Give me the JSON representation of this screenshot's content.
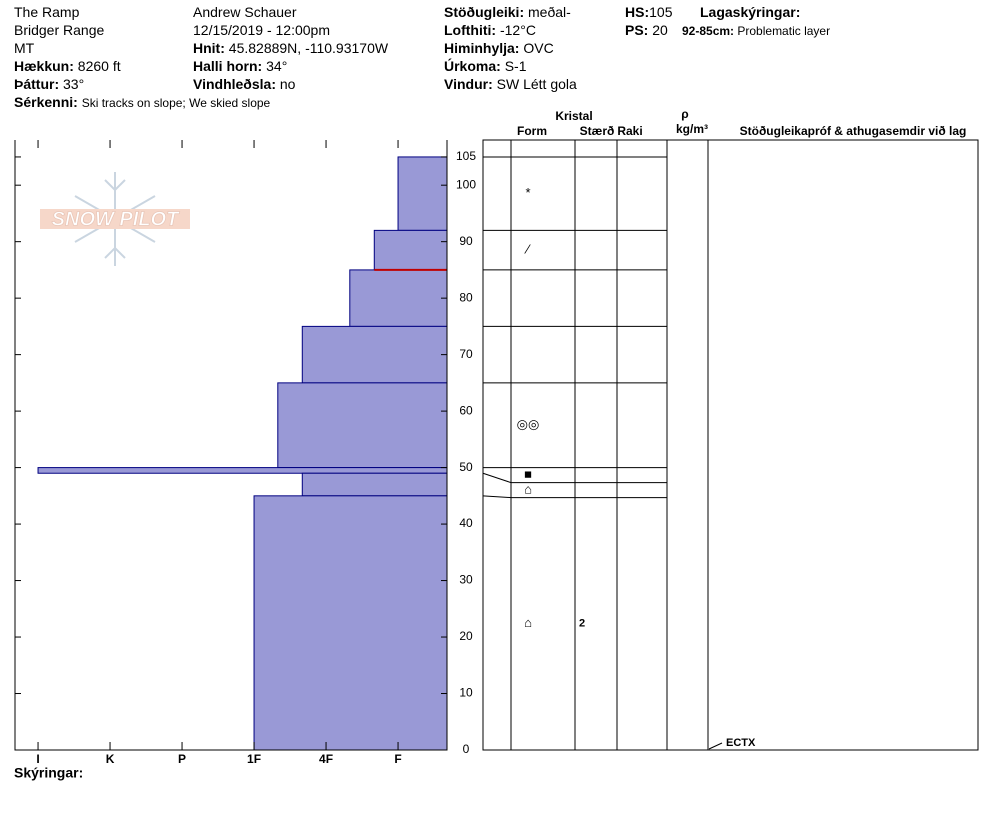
{
  "header": {
    "site": "The Ramp",
    "range": "Bridger Range",
    "state": "MT",
    "elevation": {
      "label": "Hækkun:",
      "value": "8260 ft"
    },
    "aspect": {
      "label": "Þáttur:",
      "value": "33°"
    },
    "features": {
      "label": "Sérkenni:",
      "value": "Ski tracks on slope; We skied slope"
    },
    "observer": "Andrew Schauer",
    "datetime": "12/15/2019 - 12:00pm",
    "coords": {
      "label": "Hnit:",
      "value": "45.82889N, -110.93170W"
    },
    "slope": {
      "label": "Halli horn:",
      "value": "34°"
    },
    "wind_loading": {
      "label": "Vindhleðsla:",
      "value": "no"
    },
    "stability": {
      "label": "Stöðugleiki:",
      "value": "meðal-"
    },
    "air_temp": {
      "label": "Lofthiti:",
      "value": "-12°C"
    },
    "sky": {
      "label": "Himinhylja:",
      "value": "OVC"
    },
    "precip": {
      "label": "Úrkoma:",
      "value": "S-1"
    },
    "wind": {
      "label": "Vindur:",
      "value": "SW Létt gola"
    },
    "hs": {
      "label": "HS:",
      "value": "105"
    },
    "ps": {
      "label": "PS:",
      "value": "20"
    },
    "layer_notes": {
      "title": "Lagaskýringar:",
      "items": [
        {
          "range": "92-85cm:",
          "text": "Problematic layer"
        }
      ]
    }
  },
  "logo": "SNOW PILOT",
  "chart_data": {
    "type": "snow-profile",
    "ylim": [
      0,
      108
    ],
    "yticks": [
      0,
      10,
      20,
      30,
      40,
      50,
      60,
      70,
      80,
      90,
      100,
      105
    ],
    "xlim": [
      6.32,
      0.32
    ],
    "xticks": [
      {
        "value": 6,
        "label": "I"
      },
      {
        "value": 5,
        "label": "K"
      },
      {
        "value": 4,
        "label": "P"
      },
      {
        "value": 3,
        "label": "1F"
      },
      {
        "value": 2,
        "label": "4F"
      },
      {
        "value": 1,
        "label": "F"
      }
    ],
    "bar_color": "#9999d6",
    "problem_color": "#c00000",
    "problem_depth": 85,
    "layers": [
      {
        "top": 105,
        "bottom": 92,
        "hardness": 1,
        "form": "*",
        "size": null
      },
      {
        "top": 92,
        "bottom": 85,
        "hardness": 1.33,
        "form": "⁄",
        "size": null
      },
      {
        "top": 85,
        "bottom": 75,
        "hardness": 1.67,
        "form": null,
        "size": null
      },
      {
        "top": 75,
        "bottom": 65,
        "hardness": 2.33,
        "form": null,
        "size": null
      },
      {
        "top": 65,
        "bottom": 50,
        "hardness": 2.67,
        "form": "◎◎",
        "size": null
      },
      {
        "top": 50,
        "bottom": 49,
        "hardness": 6,
        "form": "■",
        "size": null
      },
      {
        "top": 49,
        "bottom": 45,
        "hardness": 2.33,
        "form": "⌂",
        "size": null
      },
      {
        "top": 45,
        "bottom": 0,
        "hardness": 3,
        "form": "⌂",
        "size": "2"
      }
    ],
    "columns": {
      "crystal": "Kristal",
      "form": "Form",
      "size": "Stærð",
      "moisture": "Raki",
      "density_symbol": "ρ",
      "density_unit": "kg/m³",
      "comments": "Stöðugleikapróf & athugasemdir við lag"
    },
    "tests": [
      {
        "depth": 0,
        "label": "ECTX"
      }
    ],
    "legend_label": "Skýringar:"
  }
}
